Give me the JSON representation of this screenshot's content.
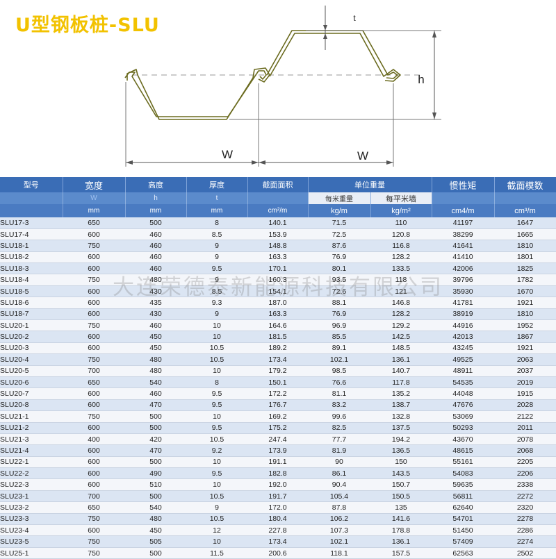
{
  "title": "U型钢板桩-SLU",
  "diagram": {
    "label_t": "t",
    "label_h": "h",
    "label_w1": "W",
    "label_w2": "W"
  },
  "table": {
    "headers": {
      "model": "型号",
      "width": "宽度",
      "width_sym": "W",
      "width_unit": "mm",
      "height": "高度",
      "height_sym": "h",
      "height_unit": "mm",
      "thick": "厚度",
      "thick_sym": "t",
      "thick_unit": "mm",
      "area": "截面面积",
      "area_unit": "cm²/m",
      "weight": "单位重量",
      "weight_m": "每米重量",
      "weight_m_unit": "kg/m",
      "weight_wall": "每平米墙",
      "weight_wall_unit": "kg/m²",
      "inertia": "惯性矩",
      "inertia_unit": "cm4/m",
      "modulus": "截面模数",
      "modulus_unit": "cm³/m"
    },
    "rows": [
      [
        "SLU17-3",
        "650",
        "500",
        "8",
        "140.1",
        "71.5",
        "110",
        "41197",
        "1647"
      ],
      [
        "SLU17-4",
        "600",
        "460",
        "8.5",
        "153.9",
        "72.5",
        "120.8",
        "38299",
        "1665"
      ],
      [
        "SLU18-1",
        "750",
        "460",
        "9",
        "148.8",
        "87.6",
        "116.8",
        "41641",
        "1810"
      ],
      [
        "SLU18-2",
        "600",
        "460",
        "9",
        "163.3",
        "76.9",
        "128.2",
        "41410",
        "1801"
      ],
      [
        "SLU18-3",
        "600",
        "460",
        "9.5",
        "170.1",
        "80.1",
        "133.5",
        "42006",
        "1825"
      ],
      [
        "SLU18-4",
        "750",
        "480",
        "9",
        "160.3",
        "93.5",
        "118",
        "39796",
        "1782"
      ],
      [
        "SLU18-5",
        "600",
        "430",
        "8.5",
        "154.1",
        "72.6",
        "121",
        "35930",
        "1670"
      ],
      [
        "SLU18-6",
        "600",
        "435",
        "9.3",
        "187.0",
        "88.1",
        "146.8",
        "41781",
        "1921"
      ],
      [
        "SLU18-7",
        "600",
        "430",
        "9",
        "163.3",
        "76.9",
        "128.2",
        "38919",
        "1810"
      ],
      [
        "SLU20-1",
        "750",
        "460",
        "10",
        "164.6",
        "96.9",
        "129.2",
        "44916",
        "1952"
      ],
      [
        "SLU20-2",
        "600",
        "450",
        "10",
        "181.5",
        "85.5",
        "142.5",
        "42013",
        "1867"
      ],
      [
        "SLU20-3",
        "600",
        "450",
        "10.5",
        "189.2",
        "89.1",
        "148.5",
        "43245",
        "1921"
      ],
      [
        "SLU20-4",
        "750",
        "480",
        "10.5",
        "173.4",
        "102.1",
        "136.1",
        "49525",
        "2063"
      ],
      [
        "SLU20-5",
        "700",
        "480",
        "10",
        "179.2",
        "98.5",
        "140.7",
        "48911",
        "2037"
      ],
      [
        "SLU20-6",
        "650",
        "540",
        "8",
        "150.1",
        "76.6",
        "117.8",
        "54535",
        "2019"
      ],
      [
        "SLU20-7",
        "600",
        "460",
        "9.5",
        "172.2",
        "81.1",
        "135.2",
        "44048",
        "1915"
      ],
      [
        "SLU20-8",
        "600",
        "470",
        "9.5",
        "176.7",
        "83.2",
        "138.7",
        "47676",
        "2028"
      ],
      [
        "SLU21-1",
        "750",
        "500",
        "10",
        "169.2",
        "99.6",
        "132.8",
        "53069",
        "2122"
      ],
      [
        "SLU21-2",
        "600",
        "500",
        "9.5",
        "175.2",
        "82.5",
        "137.5",
        "50293",
        "2011"
      ],
      [
        "SLU21-3",
        "400",
        "420",
        "10.5",
        "247.4",
        "77.7",
        "194.2",
        "43670",
        "2078"
      ],
      [
        "SLU21-4",
        "600",
        "470",
        "9.2",
        "173.9",
        "81.9",
        "136.5",
        "48615",
        "2068"
      ],
      [
        "SLU22-1",
        "600",
        "500",
        "10",
        "191.1",
        "90",
        "150",
        "55161",
        "2205"
      ],
      [
        "SLU22-2",
        "600",
        "490",
        "9.5",
        "182.8",
        "86.1",
        "143.5",
        "54083",
        "2206"
      ],
      [
        "SLU22-3",
        "600",
        "510",
        "10",
        "192.0",
        "90.4",
        "150.7",
        "59635",
        "2338"
      ],
      [
        "SLU23-1",
        "700",
        "500",
        "10.5",
        "191.7",
        "105.4",
        "150.5",
        "56811",
        "2272"
      ],
      [
        "SLU23-2",
        "650",
        "540",
        "9",
        "172.0",
        "87.8",
        "135",
        "62640",
        "2320"
      ],
      [
        "SLU23-3",
        "750",
        "480",
        "10.5",
        "180.4",
        "106.2",
        "141.6",
        "54701",
        "2278"
      ],
      [
        "SLU23-4",
        "600",
        "450",
        "12",
        "227.8",
        "107.3",
        "178.8",
        "51450",
        "2286"
      ],
      [
        "SLU23-5",
        "750",
        "505",
        "10",
        "173.4",
        "102.1",
        "136.1",
        "57409",
        "2274"
      ],
      [
        "SLU25-1",
        "750",
        "500",
        "11.5",
        "200.6",
        "118.1",
        "157.5",
        "62563",
        "2502"
      ]
    ]
  },
  "watermark": "大连荣德泰新能源科技有限公司",
  "colors": {
    "title": "#f2c200",
    "header": "#3a6db6",
    "profile": "#7a7a2a"
  }
}
